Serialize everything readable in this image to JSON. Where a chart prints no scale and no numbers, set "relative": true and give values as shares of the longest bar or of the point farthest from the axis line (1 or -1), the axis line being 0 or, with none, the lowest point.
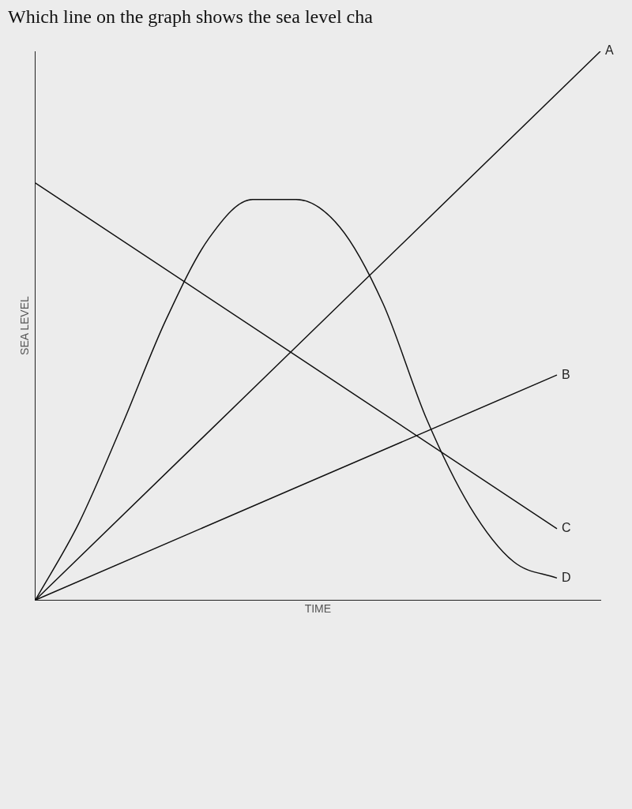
{
  "chart_data": {
    "type": "line",
    "title": "Which line on the graph shows the sea level cha",
    "xlabel": "TIME",
    "ylabel": "SEA LEVEL",
    "relative": true,
    "legend": false,
    "grid": false,
    "marker": "none",
    "line_style": "solid",
    "categories": [
      null,
      null,
      null,
      null,
      null,
      null,
      null,
      null,
      null,
      null,
      null,
      null,
      null,
      null
    ],
    "series": [
      {
        "name": "A",
        "color": "#111111",
        "values": [
          0,
          null,
          null,
          null,
          null,
          null,
          null,
          null,
          null,
          null,
          null,
          null,
          null,
          1
        ]
      },
      {
        "name": "B",
        "color": "#111111",
        "values": [
          0,
          null,
          null,
          null,
          null,
          null,
          null,
          null,
          null,
          null,
          null,
          null,
          0.41,
          null
        ]
      },
      {
        "name": "C",
        "color": "#111111",
        "values": [
          0.76,
          null,
          null,
          null,
          null,
          null,
          null,
          null,
          null,
          null,
          null,
          null,
          0.13,
          null
        ]
      },
      {
        "name": "D",
        "color": "#111111",
        "values": [
          0,
          0.14,
          0.32,
          0.51,
          0.66,
          0.73,
          0.73,
          0.68,
          0.54,
          0.33,
          0.17,
          0.07,
          0.04,
          null
        ]
      }
    ]
  }
}
